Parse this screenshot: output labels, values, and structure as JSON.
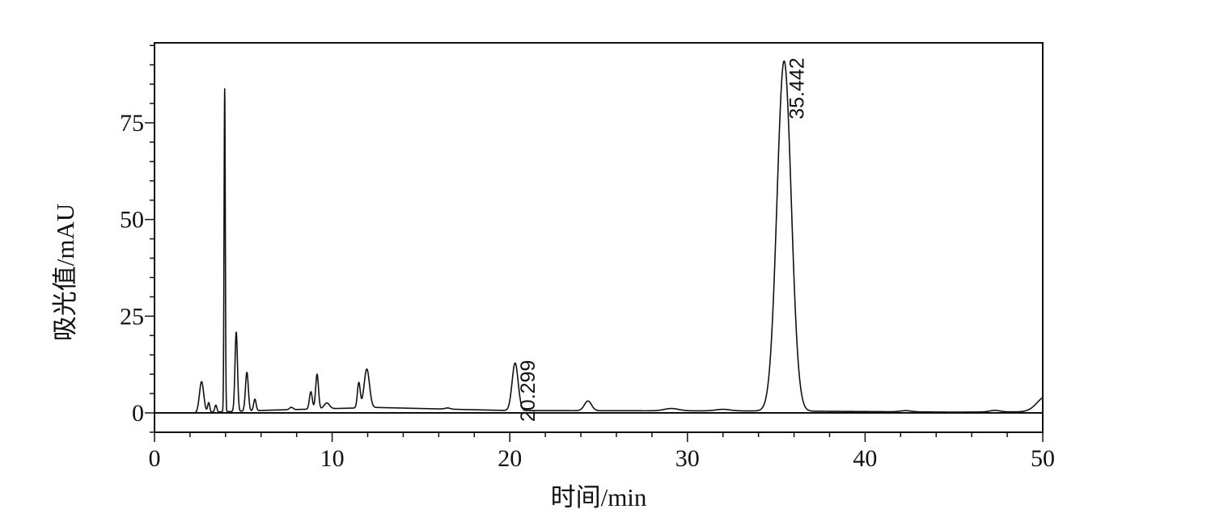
{
  "chart_data": {
    "type": "line",
    "title": "",
    "xlabel": "时间/min",
    "ylabel": "吸光值/mAU",
    "xlim": [
      0,
      50
    ],
    "ylim": [
      -5,
      96
    ],
    "x_ticks": [
      0,
      10,
      20,
      30,
      40,
      50
    ],
    "x_tick_labels": [
      "0",
      "10",
      "20",
      "30",
      "40",
      "50"
    ],
    "y_ticks": [
      0,
      25,
      50,
      75
    ],
    "y_tick_labels": [
      "0",
      "25",
      "50",
      "75"
    ],
    "grid": false,
    "legend": "none",
    "line_color": "#111111",
    "baseline": 0,
    "peaks": [
      {
        "rt": 2.65,
        "height": 8.0,
        "width": 0.12
      },
      {
        "rt": 3.05,
        "height": 2.5,
        "width": 0.06
      },
      {
        "rt": 3.45,
        "height": 1.8,
        "width": 0.06
      },
      {
        "rt": 3.95,
        "height": 83.5,
        "width": 0.035
      },
      {
        "rt": 4.6,
        "height": 20.5,
        "width": 0.07
      },
      {
        "rt": 5.2,
        "height": 10.0,
        "width": 0.08
      },
      {
        "rt": 5.65,
        "height": 3.0,
        "width": 0.07
      },
      {
        "rt": 7.7,
        "height": 0.6,
        "width": 0.1
      },
      {
        "rt": 8.8,
        "height": 4.5,
        "width": 0.08
      },
      {
        "rt": 9.15,
        "height": 9.0,
        "width": 0.08
      },
      {
        "rt": 9.7,
        "height": 1.5,
        "width": 0.15
      },
      {
        "rt": 11.5,
        "height": 6.5,
        "width": 0.08
      },
      {
        "rt": 11.95,
        "height": 10.0,
        "width": 0.15
      },
      {
        "rt": 16.5,
        "height": 0.3,
        "width": 0.15
      },
      {
        "rt": 20.299,
        "height": 12.3,
        "width": 0.17,
        "label": "20.299"
      },
      {
        "rt": 24.4,
        "height": 2.5,
        "width": 0.2
      },
      {
        "rt": 29.1,
        "height": 0.6,
        "width": 0.4
      },
      {
        "rt": 32.0,
        "height": 0.4,
        "width": 0.4
      },
      {
        "rt": 35.442,
        "height": 90.5,
        "width": 0.4,
        "label": "35.442"
      },
      {
        "rt": 42.3,
        "height": 0.3,
        "width": 0.3
      },
      {
        "rt": 47.3,
        "height": 0.4,
        "width": 0.3
      },
      {
        "rt": 50.2,
        "height": 4.0,
        "width": 0.5
      }
    ],
    "drift": [
      {
        "x": 0,
        "y": 0
      },
      {
        "x": 2.2,
        "y": 0
      },
      {
        "x": 6.5,
        "y": 0.7
      },
      {
        "x": 12.5,
        "y": 1.4
      },
      {
        "x": 20,
        "y": 0.6
      },
      {
        "x": 35,
        "y": 0.5
      },
      {
        "x": 45,
        "y": 0.2
      },
      {
        "x": 50,
        "y": 0.3
      }
    ]
  }
}
